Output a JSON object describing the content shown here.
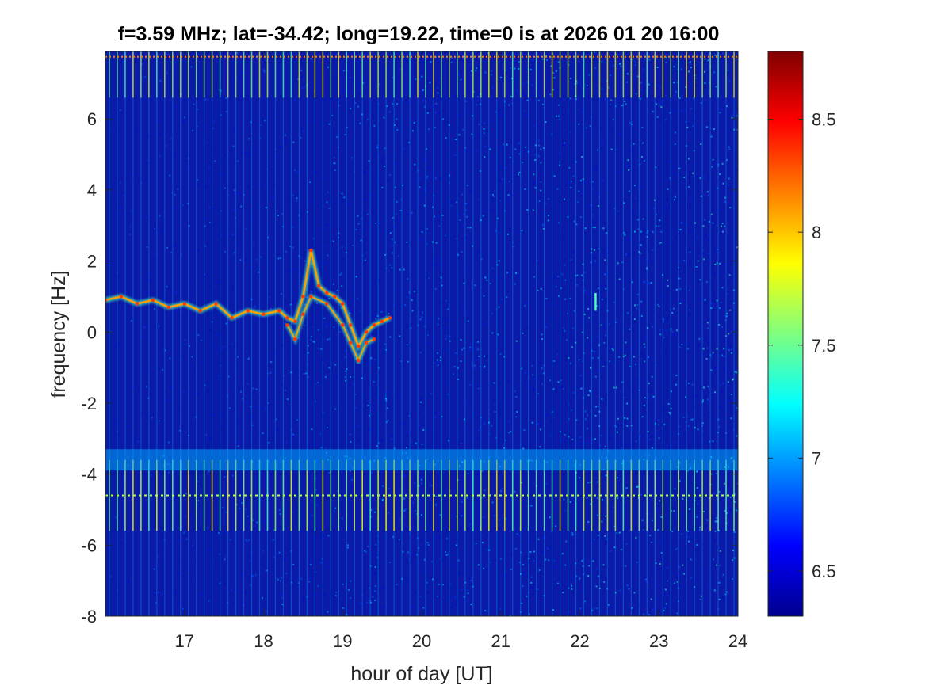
{
  "chart_data": {
    "type": "heatmap",
    "title": "f=3.59 MHz;  lat=-34.42; long=19.22, time=0 is at 2026 01 20 16:00",
    "xlabel": "hour of day [UT]",
    "ylabel": "frequency [Hz]",
    "xlim": [
      16,
      24
    ],
    "ylim": [
      -8,
      7.9
    ],
    "x_ticks": [
      "17",
      "18",
      "19",
      "20",
      "21",
      "22",
      "23",
      "24"
    ],
    "y_ticks": [
      "-8",
      "-6",
      "-4",
      "-2",
      "0",
      "2",
      "4",
      "6"
    ],
    "colorbar": {
      "colormap": "jet",
      "range": [
        6.3,
        8.8
      ],
      "ticks": [
        "6.5",
        "7",
        "7.5",
        "8",
        "8.5"
      ]
    },
    "features": {
      "doppler_trace": {
        "x": [
          16.0,
          16.2,
          16.4,
          16.6,
          16.8,
          17.0,
          17.2,
          17.4,
          17.6,
          17.8,
          18.0,
          18.2,
          18.3,
          18.4,
          18.5,
          18.6,
          18.7,
          18.8,
          18.9,
          19.0,
          19.1,
          19.2,
          19.3,
          19.4,
          19.5,
          19.6
        ],
        "y": [
          0.9,
          1.0,
          0.8,
          0.9,
          0.7,
          0.8,
          0.6,
          0.8,
          0.4,
          0.6,
          0.5,
          0.6,
          0.4,
          0.3,
          1.0,
          2.3,
          1.3,
          1.1,
          1.0,
          0.8,
          0.2,
          -0.4,
          0.0,
          0.2,
          0.3,
          0.4
        ]
      },
      "secondary_trace": {
        "x": [
          18.3,
          18.4,
          18.5,
          18.6,
          18.8,
          19.0,
          19.1,
          19.2,
          19.3,
          19.4
        ],
        "y": [
          0.2,
          -0.2,
          0.5,
          1.0,
          0.8,
          0.2,
          -0.3,
          -0.8,
          -0.3,
          -0.2
        ]
      },
      "faint_spot": {
        "x": 22.2,
        "y": [
          0.6,
          1.1
        ]
      }
    }
  }
}
